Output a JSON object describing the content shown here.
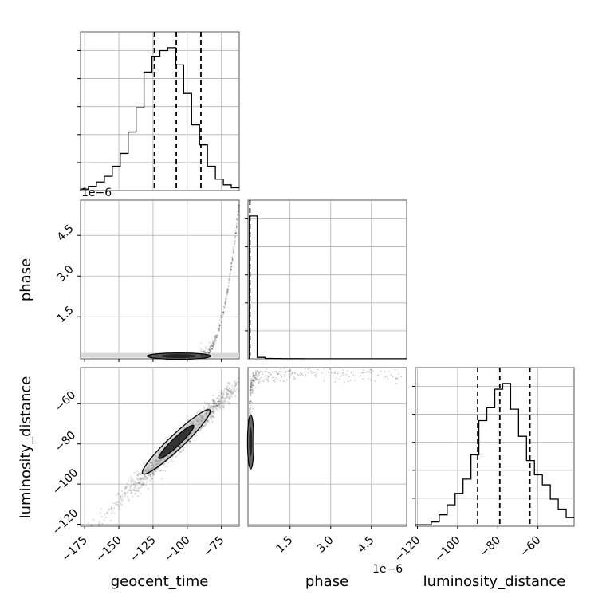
{
  "chart_data": {
    "type": "corner",
    "parameters": [
      "geocent_time",
      "phase",
      "luminosity_distance"
    ],
    "offset_labels": {
      "top_hist": "1e−6",
      "phase_x": "1e−6"
    },
    "ticks": {
      "geocent_time_x": {
        "values": [
          -175,
          -150,
          -125,
          -100,
          -75
        ],
        "labels": [
          "−175",
          "−150",
          "−125",
          "−100",
          "−75"
        ]
      },
      "phase_x": {
        "values": [
          1.5,
          3.0,
          4.5
        ],
        "labels": [
          "1.5",
          "3.0",
          "4.5"
        ]
      },
      "luminosity_distance_x": {
        "values": [
          -120,
          -100,
          -80,
          -60
        ],
        "labels": [
          "−120",
          "−100",
          "−80",
          "−60"
        ]
      },
      "phase_y": {
        "values": [
          1.5,
          3.0,
          4.5
        ],
        "labels": [
          "1.5",
          "3.0",
          "4.5"
        ]
      },
      "luminosity_distance_y": {
        "values": [
          -120,
          -100,
          -80,
          -60
        ],
        "labels": [
          "−120",
          "−100",
          "−80",
          "−60"
        ]
      }
    },
    "ranges": {
      "geocent_time": [
        -178,
        -62
      ],
      "phase": [
        -0.05,
        5.8
      ],
      "luminosity_distance": [
        -121,
        -42
      ]
    },
    "histograms": {
      "geocent_time": {
        "edges": [
          -178,
          -172.2,
          -166.4,
          -160.6,
          -154.8,
          -149,
          -143.2,
          -137.4,
          -131.6,
          -125.8,
          -120,
          -114.2,
          -108.4,
          -102.6,
          -96.8,
          -91,
          -85.2,
          -79.4,
          -73.6,
          -67.8,
          -62
        ],
        "counts": [
          0.01,
          0.03,
          0.06,
          0.1,
          0.17,
          0.26,
          0.41,
          0.58,
          0.83,
          0.94,
          0.98,
          1.0,
          0.88,
          0.68,
          0.46,
          0.32,
          0.17,
          0.08,
          0.04,
          0.02
        ],
        "quantiles": [
          -124,
          -108,
          -90
        ]
      },
      "phase": {
        "edges": [
          0,
          0.29,
          0.58,
          0.87,
          1.16,
          1.45,
          1.74,
          2.03,
          2.32,
          2.61,
          2.9,
          3.19,
          3.48,
          3.77,
          4.06,
          4.35,
          4.64,
          4.93,
          5.22,
          5.51,
          5.8
        ],
        "counts": [
          1.0,
          0.01,
          0.003,
          0.002,
          0.001,
          0.001,
          0.001,
          0.0005,
          0.0005,
          0.0005,
          0.0005,
          0.0005,
          0.0005,
          0.0005,
          0.0005,
          0.0005,
          0.0005,
          0.0005,
          0.0005,
          0.0005
        ],
        "quantiles": [
          0.02
        ]
      },
      "luminosity_distance": {
        "edges": [
          -121,
          -117.05,
          -113.1,
          -109.15,
          -105.2,
          -101.25,
          -97.3,
          -93.35,
          -89.4,
          -85.45,
          -81.5,
          -77.55,
          -73.6,
          -69.65,
          -65.7,
          -61.75,
          -57.8,
          -53.85,
          -49.9,
          -45.95,
          -42
        ],
        "counts": [
          0.01,
          0.01,
          0.03,
          0.08,
          0.15,
          0.23,
          0.33,
          0.5,
          0.74,
          0.83,
          0.96,
          1.0,
          0.82,
          0.63,
          0.46,
          0.36,
          0.29,
          0.19,
          0.12,
          0.06
        ],
        "quantiles": [
          -90,
          -79,
          -64
        ]
      }
    },
    "correlation": {
      "geocent_time_vs_luminosity_distance": 0.97
    },
    "colors": {
      "line": "#000000",
      "grid": "#b0b0b0",
      "scatter": "#000000"
    }
  }
}
